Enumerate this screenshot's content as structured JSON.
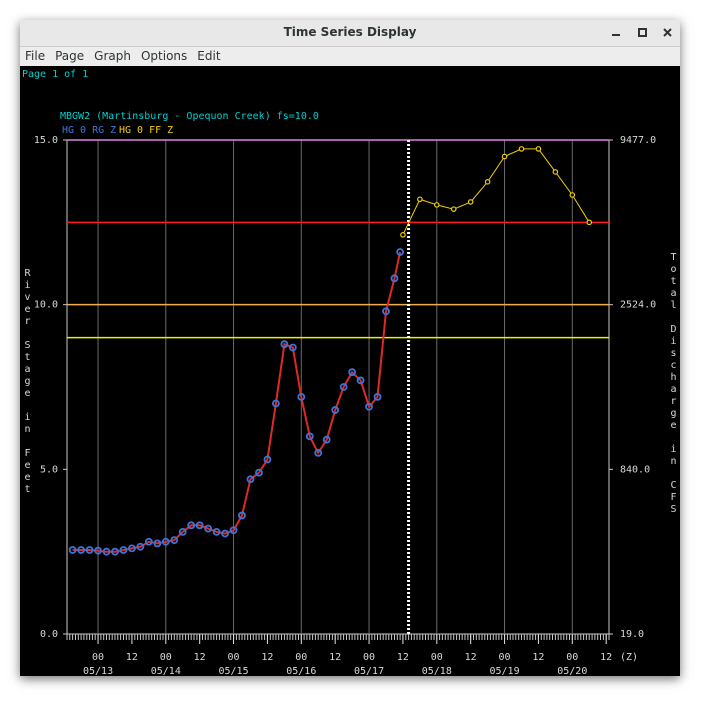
{
  "window": {
    "title": "Time Series Display",
    "menu": [
      "File",
      "Page",
      "Graph",
      "Options",
      "Edit"
    ],
    "page_label": "Page 1 of 1"
  },
  "chart_data": {
    "type": "line",
    "title": "MBGW2 (Martinsburg - Opequon Creek) fs=10.0",
    "y_label": "River Stage in Feet",
    "y2_label": "Total Discharge in CFS",
    "x_unit_label": "(Z)",
    "ylim": [
      0,
      15
    ],
    "yticks": [
      {
        "value": 0,
        "label": "0.0"
      },
      {
        "value": 5,
        "label": "5.0"
      },
      {
        "value": 10,
        "label": "10.0"
      },
      {
        "value": 15,
        "label": "15.0"
      }
    ],
    "y2ticks": [
      {
        "value": 19,
        "label": "19.0"
      },
      {
        "value": 840,
        "label": "840.0"
      },
      {
        "value": 2524,
        "label": "2524.0"
      },
      {
        "value": 9477,
        "label": "9477.0"
      }
    ],
    "xlim": [
      "05/12 13",
      "05/20 13"
    ],
    "xticks": [
      {
        "value": "05/13 00",
        "label": "00"
      },
      {
        "value": "05/13 12",
        "label": "12"
      },
      {
        "value": "05/14 00",
        "label": "00"
      },
      {
        "value": "05/14 12",
        "label": "12"
      },
      {
        "value": "05/15 00",
        "label": "00"
      },
      {
        "value": "05/15 12",
        "label": "12"
      },
      {
        "value": "05/16 00",
        "label": "00"
      },
      {
        "value": "05/16 12",
        "label": "12"
      },
      {
        "value": "05/17 00",
        "label": "00"
      },
      {
        "value": "05/17 12",
        "label": "12"
      },
      {
        "value": "05/18 00",
        "label": "00"
      },
      {
        "value": "05/18 12",
        "label": "12"
      },
      {
        "value": "05/19 00",
        "label": "00"
      },
      {
        "value": "05/19 12",
        "label": "12"
      },
      {
        "value": "05/20 00",
        "label": "00"
      },
      {
        "value": "05/20 12",
        "label": "12"
      }
    ],
    "xdates": [
      {
        "value": "05/13 00",
        "label": "05/13"
      },
      {
        "value": "05/14 00",
        "label": "05/14"
      },
      {
        "value": "05/15 00",
        "label": "05/15"
      },
      {
        "value": "05/16 00",
        "label": "05/16"
      },
      {
        "value": "05/17 00",
        "label": "05/17"
      },
      {
        "value": "05/18 00",
        "label": "05/18"
      },
      {
        "value": "05/19 00",
        "label": "05/19"
      },
      {
        "value": "05/20 00",
        "label": "05/20"
      }
    ],
    "grid": true,
    "thresholds": [
      {
        "value": 15,
        "color": "#e080e0"
      },
      {
        "value": 12.5,
        "color": "#ff1a1a"
      },
      {
        "value": 10,
        "color": "#f0b050"
      },
      {
        "value": 9,
        "color": "#f0f000"
      }
    ],
    "current_time": "05/17 14",
    "series": [
      {
        "name": "HG 0 RG Z",
        "color": "#3f73d8",
        "line_color": "#e02828",
        "x": [
          "05/12 15",
          "05/12 18",
          "05/12 21",
          "05/13 00",
          "05/13 03",
          "05/13 06",
          "05/13 09",
          "05/13 12",
          "05/13 15",
          "05/13 18",
          "05/13 21",
          "05/14 00",
          "05/14 03",
          "05/14 06",
          "05/14 09",
          "05/14 12",
          "05/14 15",
          "05/14 18",
          "05/14 21",
          "05/15 00",
          "05/15 03",
          "05/15 06",
          "05/15 09",
          "05/15 12",
          "05/15 15",
          "05/15 18",
          "05/15 21",
          "05/16 00",
          "05/16 03",
          "05/16 06",
          "05/16 09",
          "05/16 12",
          "05/16 15",
          "05/16 18",
          "05/16 21",
          "05/17 00",
          "05/17 03",
          "05/17 06",
          "05/17 09",
          "05/17 11"
        ],
        "values": [
          2.55,
          2.55,
          2.55,
          2.53,
          2.5,
          2.5,
          2.55,
          2.6,
          2.65,
          2.8,
          2.75,
          2.8,
          2.85,
          3.1,
          3.3,
          3.3,
          3.2,
          3.1,
          3.05,
          3.15,
          3.6,
          4.7,
          4.9,
          5.3,
          7.0,
          8.8,
          8.7,
          7.2,
          6.0,
          5.5,
          5.9,
          6.8,
          7.5,
          7.95,
          7.7,
          6.9,
          7.2,
          9.8,
          10.8,
          11.6
        ]
      },
      {
        "name": "HG 0 FF Z",
        "color": "#f0d000",
        "line_color": "#f0d000",
        "x": [
          "05/17 12",
          "05/17 18",
          "05/18 00",
          "05/18 06",
          "05/18 12",
          "05/18 18",
          "05/19 00",
          "05/19 06",
          "05/19 12",
          "05/19 18",
          "05/20 00",
          "05/20 06"
        ],
        "values": [
          12.12,
          13.2,
          13.03,
          12.9,
          13.12,
          13.73,
          14.5,
          14.73,
          14.73,
          14.03,
          13.33,
          12.5
        ]
      }
    ]
  }
}
